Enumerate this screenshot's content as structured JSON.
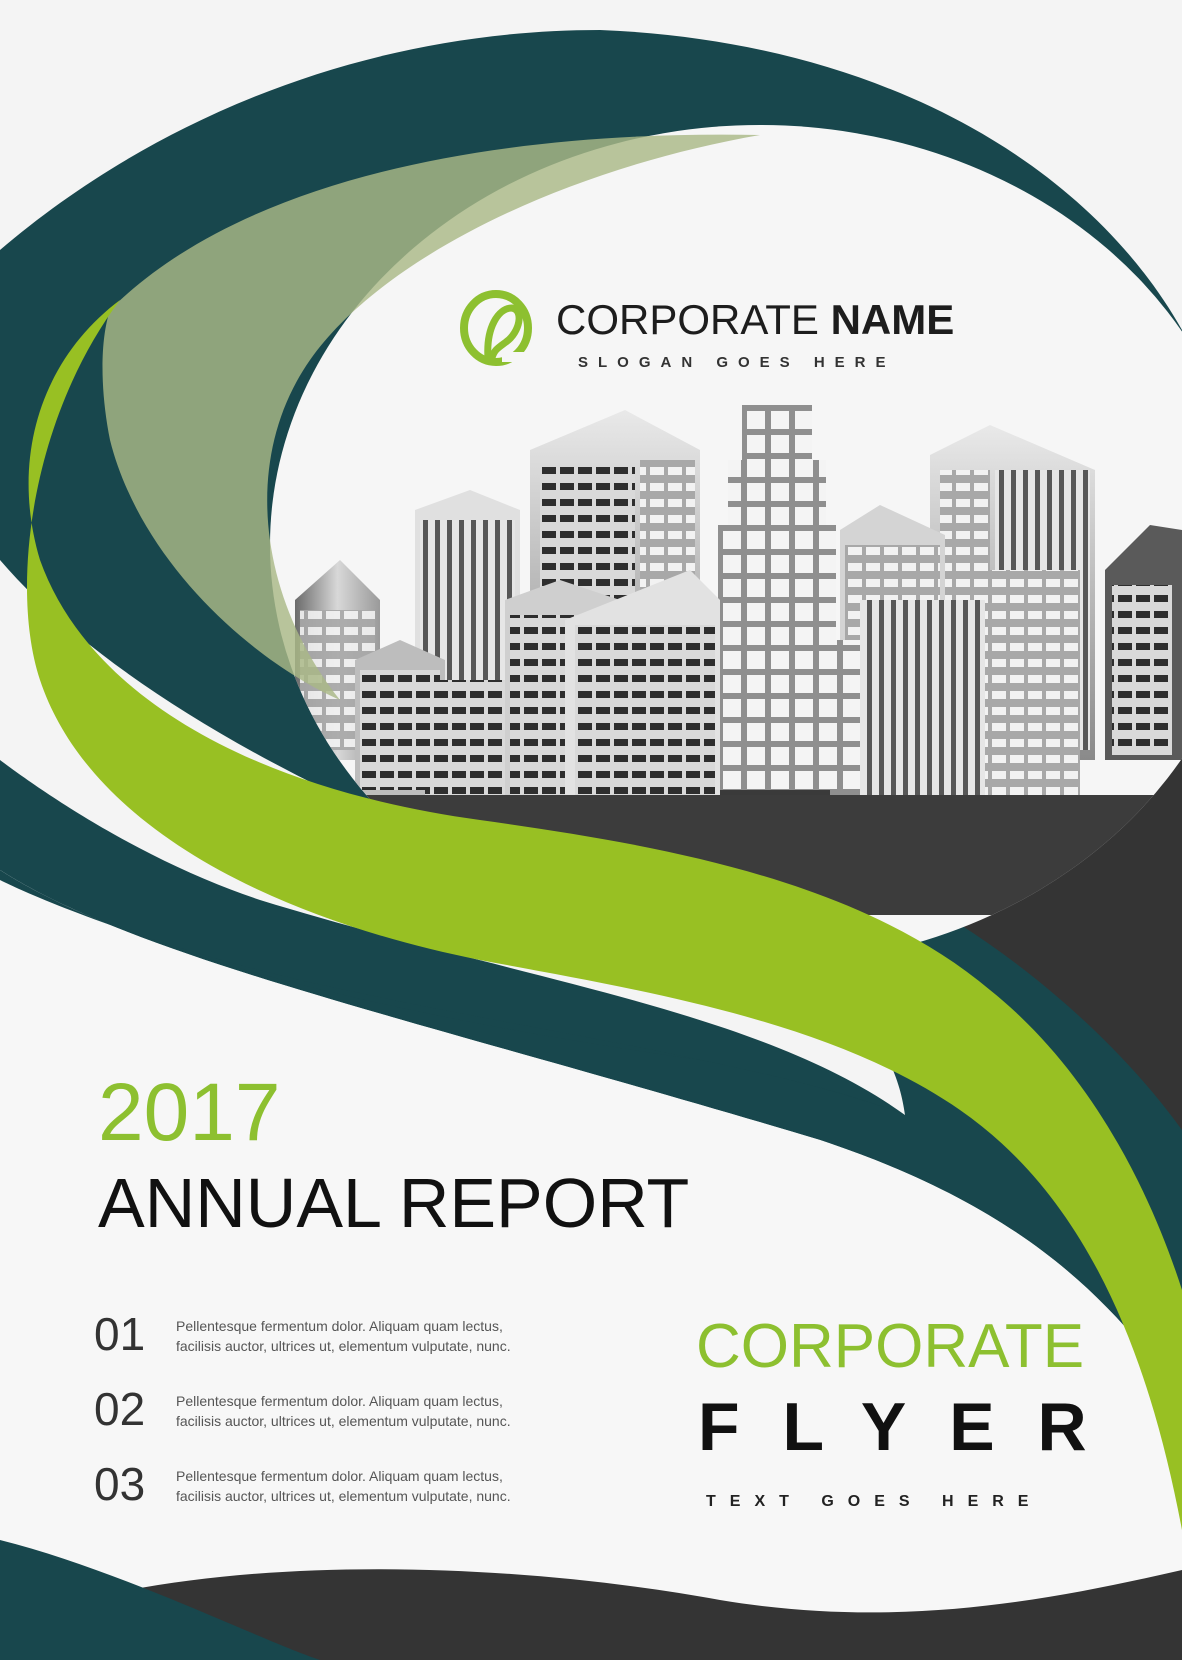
{
  "header": {
    "corporate_name_regular": "CORPORATE",
    "corporate_name_bold": "NAME",
    "slogan": "SLOGAN GOES HERE"
  },
  "report": {
    "year": "2017",
    "title": "ANNUAL REPORT"
  },
  "list": [
    {
      "number": "01",
      "line1": "Pellentesque fermentum dolor. Aliquam quam lectus,",
      "line2": "facilisis auctor, ultrices ut, elementum vulputate, nunc."
    },
    {
      "number": "02",
      "line1": "Pellentesque fermentum dolor. Aliquam quam lectus,",
      "line2": "facilisis auctor, ultrices ut, elementum vulputate, nunc."
    },
    {
      "number": "03",
      "line1": "Pellentesque fermentum dolor. Aliquam quam lectus,",
      "line2": "facilisis auctor, ultrices ut, elementum vulputate, nunc."
    }
  ],
  "flyer": {
    "corporate": "CORPORATE",
    "flyer": "FLYER",
    "tagline": "TEXT GOES HERE"
  },
  "icons": {
    "logo": "corporate-logo-icon",
    "skyline": "city-skyline-icon"
  },
  "colors": {
    "dark_teal": "#18474d",
    "lime_green": "#98c023",
    "sage": "#b7c49a",
    "charcoal": "#323232",
    "text_green": "#8dc030"
  }
}
